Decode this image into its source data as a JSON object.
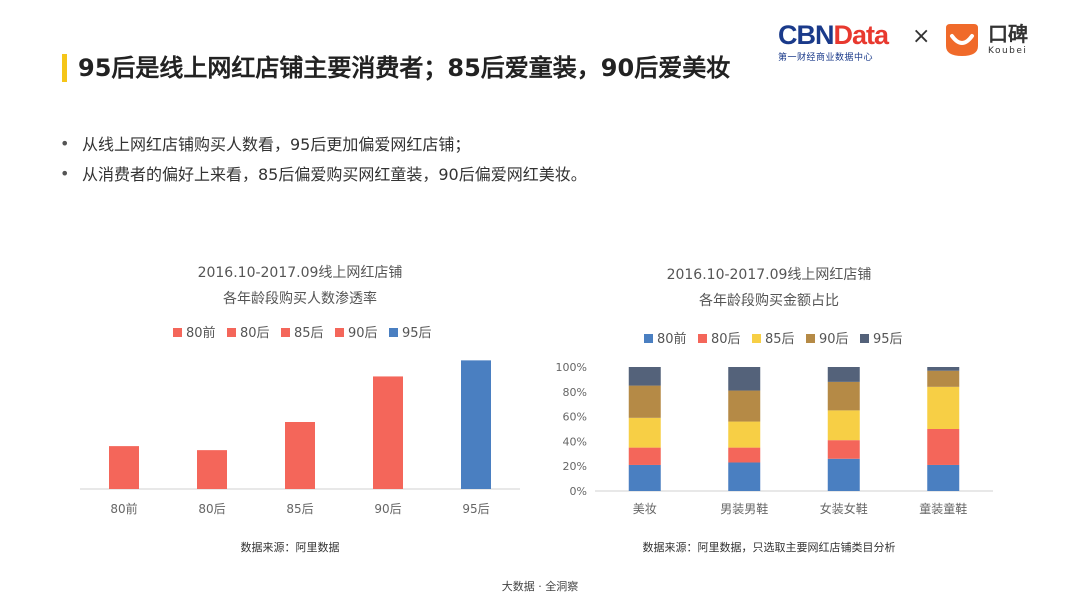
{
  "header": {
    "brand_primary_a": "CBN",
    "brand_primary_b": "Data",
    "brand_primary_sub": "第一财经商业数据中心",
    "separator": "×",
    "brand_secondary_cn": "口碑",
    "brand_secondary_en": "Koubei"
  },
  "slide": {
    "title": "95后是线上网红店铺主要消费者；85后爱童装，90后爱美妆",
    "bullets": [
      "从线上网红店铺购买人数看，95后更加偏爱网红店铺；",
      "从消费者的偏好上来看，85后偏爱购买网红童装，90后偏爱网红美妆。"
    ],
    "footer": "大数据 · 全洞察"
  },
  "colors": {
    "accent_bar": "#f5c518",
    "red": "#f4665a",
    "blue": "#4a7fc1",
    "yellow": "#f7cf45",
    "brown": "#b58a46",
    "slate": "#54627a",
    "axis": "#d0d0d0"
  },
  "chart_data": [
    {
      "type": "bar",
      "title": "2016.10-2017.09线上网红店铺",
      "subtitle": "各年龄段购买人数渗透率",
      "categories": [
        "80前",
        "80后",
        "85后",
        "90后",
        "95后"
      ],
      "legend": [
        "80前",
        "80后",
        "85后",
        "90后",
        "95后"
      ],
      "legend_colors": [
        "#f4665a",
        "#f4665a",
        "#f4665a",
        "#f4665a",
        "#4a7fc1"
      ],
      "bar_colors": [
        "#f4665a",
        "#f4665a",
        "#f4665a",
        "#f4665a",
        "#4a7fc1"
      ],
      "values": [
        0.32,
        0.29,
        0.5,
        0.84,
        0.96
      ],
      "ylim": [
        0,
        1
      ],
      "y_axis_shown": false,
      "legend_position": "top",
      "source": "数据来源：阿里数据"
    },
    {
      "type": "bar",
      "stacked": true,
      "title": "2016.10-2017.09线上网红店铺",
      "subtitle": "各年龄段购买金额占比",
      "categories": [
        "美妆",
        "男装男鞋",
        "女装女鞋",
        "童装童鞋"
      ],
      "yticks": [
        "0%",
        "20%",
        "40%",
        "60%",
        "80%",
        "100%"
      ],
      "ylim": [
        0,
        100
      ],
      "legend_position": "top",
      "series": [
        {
          "name": "80前",
          "color": "#4a7fc1",
          "values": [
            21,
            23,
            26,
            21
          ]
        },
        {
          "name": "80后",
          "color": "#f4665a",
          "values": [
            14,
            12,
            15,
            29
          ]
        },
        {
          "name": "85后",
          "color": "#f7cf45",
          "values": [
            24,
            21,
            24,
            34
          ]
        },
        {
          "name": "90后",
          "color": "#b58a46",
          "values": [
            26,
            25,
            23,
            13
          ]
        },
        {
          "name": "95后",
          "color": "#54627a",
          "values": [
            15,
            19,
            12,
            3
          ]
        }
      ],
      "source": "数据来源：阿里数据，只选取主要网红店铺类目分析"
    }
  ]
}
